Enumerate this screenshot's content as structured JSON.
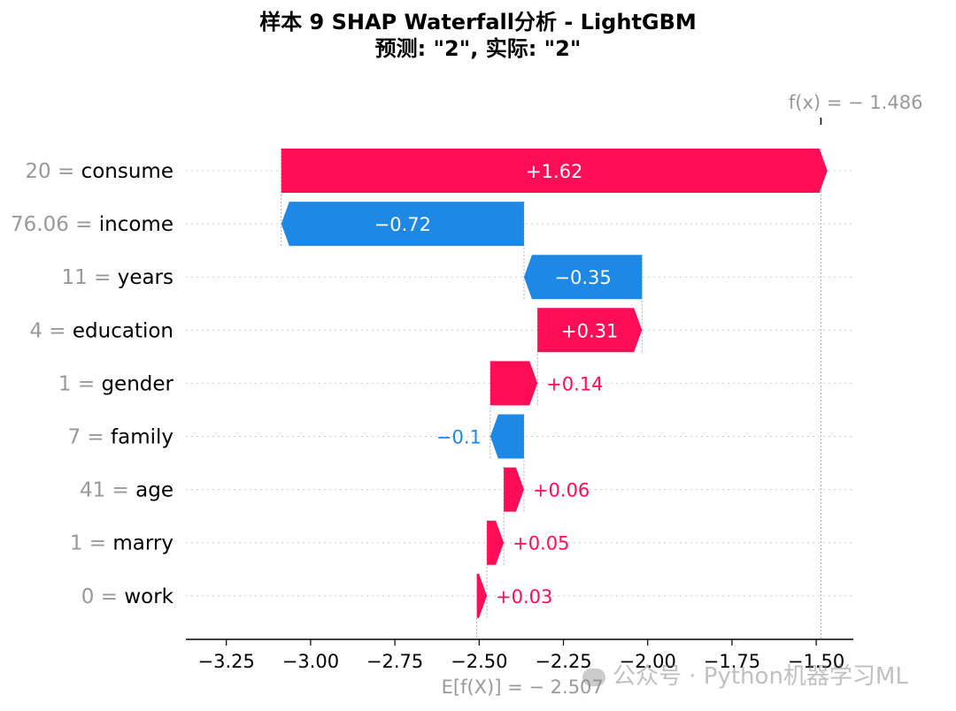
{
  "title_line1": "样本 9 SHAP Waterfall分析 - LightGBM",
  "title_line2": "预测: \"2\", 实际: \"2\"",
  "watermark": "公众号 · Python机器学习ML",
  "colors": {
    "positive": "#ff0d57",
    "negative": "#1e88e5",
    "feature_value": "#999999",
    "axis": "#000000"
  },
  "chart_data": {
    "type": "waterfall",
    "base_value": -2.507,
    "base_label": "E[f(X)] = − 2.507",
    "output_value": -1.486,
    "output_label": "f(x) = − 1.486",
    "xlim": [
      -3.37,
      -1.39
    ],
    "xticks": [
      -3.25,
      -3.0,
      -2.75,
      -2.5,
      -2.25,
      -2.0,
      -1.75,
      -1.5
    ],
    "xtick_labels": [
      "−3.25",
      "−3.00",
      "−2.75",
      "−2.50",
      "−2.25",
      "−2.00",
      "−1.75",
      "−1.50"
    ],
    "features": [
      {
        "value": "20",
        "name": "consume",
        "shap": 1.62,
        "label": "+1.62"
      },
      {
        "value": "76.06",
        "name": "income",
        "shap": -0.72,
        "label": "−0.72"
      },
      {
        "value": "11",
        "name": "years",
        "shap": -0.35,
        "label": "−0.35"
      },
      {
        "value": "4",
        "name": "education",
        "shap": 0.31,
        "label": "+0.31"
      },
      {
        "value": "1",
        "name": "gender",
        "shap": 0.14,
        "label": "+0.14"
      },
      {
        "value": "7",
        "name": "family",
        "shap": -0.1,
        "label": "−0.1"
      },
      {
        "value": "41",
        "name": "age",
        "shap": 0.06,
        "label": "+0.06"
      },
      {
        "value": "1",
        "name": "marry",
        "shap": 0.05,
        "label": "+0.05"
      },
      {
        "value": "0",
        "name": "work",
        "shap": 0.03,
        "label": "+0.03"
      }
    ]
  }
}
